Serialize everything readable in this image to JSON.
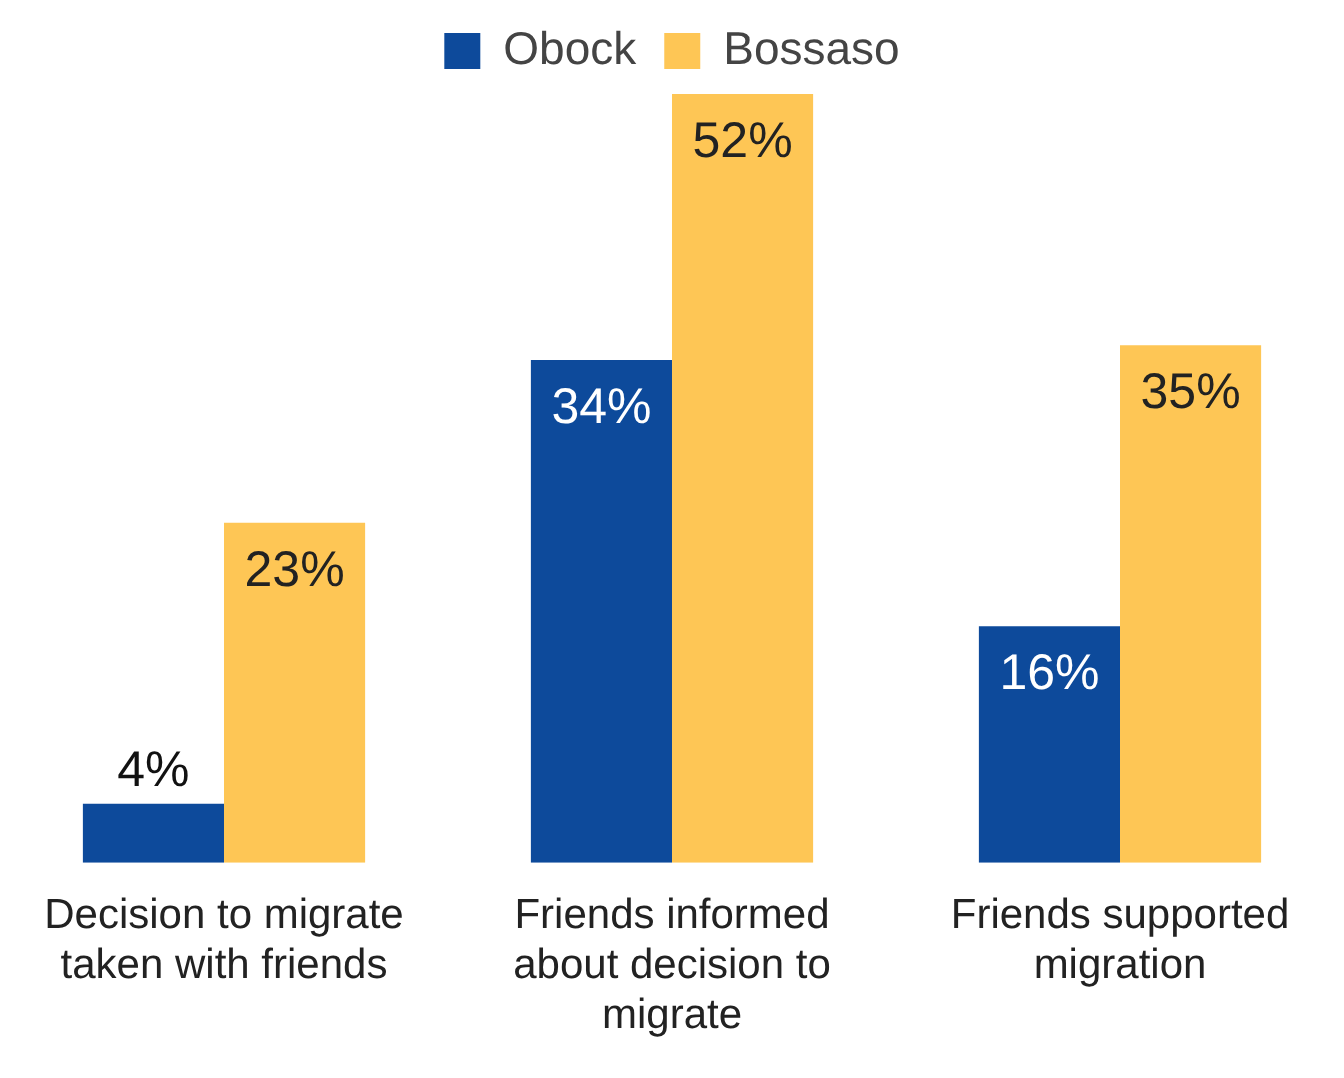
{
  "chart_data": {
    "type": "bar",
    "categories": [
      "Decision to migrate taken with friends",
      "Friends informed about decision to migrate",
      "Friends supported migration"
    ],
    "series": [
      {
        "name": "Obock",
        "color": "#0d4a9b",
        "values": [
          4,
          34,
          16
        ],
        "value_labels": [
          "4%",
          "34%",
          "16%"
        ]
      },
      {
        "name": "Bossaso",
        "color": "#fec655",
        "values": [
          23,
          52,
          35
        ],
        "value_labels": [
          "23%",
          "52%",
          "35%"
        ]
      }
    ],
    "legend": "top",
    "grid": false
  }
}
